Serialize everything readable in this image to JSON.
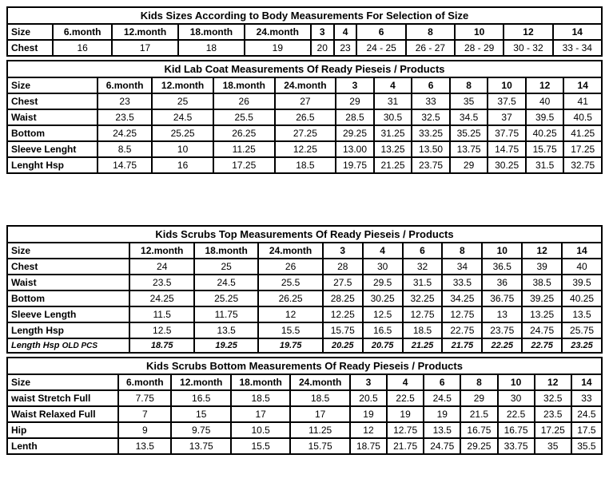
{
  "table1": {
    "title": "Kids Sizes According to Body Measurements For Selection of Size",
    "columns": [
      "Size",
      "6.month",
      "12.month",
      "18.month",
      "24.month",
      "3",
      "4",
      "6",
      "8",
      "10",
      "12",
      "14"
    ],
    "rows": [
      {
        "label": "Chest",
        "values": [
          "16",
          "17",
          "18",
          "19",
          "20",
          "23",
          "24 - 25",
          "26 - 27",
          "28 - 29",
          "30 - 32",
          "33 - 34"
        ]
      }
    ]
  },
  "table2": {
    "title": "Kid Lab Coat  Measurements Of Ready Pieseis / Products",
    "columns": [
      "Size",
      "6.month",
      "12.month",
      "18.month",
      "24.month",
      "3",
      "4",
      "6",
      "8",
      "10",
      "12",
      "14"
    ],
    "rows": [
      {
        "label": "Chest",
        "values": [
          "23",
          "25",
          "26",
          "27",
          "29",
          "31",
          "33",
          "35",
          "37.5",
          "40",
          "41"
        ]
      },
      {
        "label": "Waist",
        "values": [
          "23.5",
          "24.5",
          "25.5",
          "26.5",
          "28.5",
          "30.5",
          "32.5",
          "34.5",
          "37",
          "39.5",
          "40.5"
        ]
      },
      {
        "label": "Bottom",
        "values": [
          "24.25",
          "25.25",
          "26.25",
          "27.25",
          "29.25",
          "31.25",
          "33.25",
          "35.25",
          "37.75",
          "40.25",
          "41.25"
        ]
      },
      {
        "label": "Sleeve Lenght",
        "values": [
          "8.5",
          "10",
          "11.25",
          "12.25",
          "13.00",
          "13.25",
          "13.50",
          "13.75",
          "14.75",
          "15.75",
          "17.25"
        ]
      },
      {
        "label": "Lenght Hsp",
        "values": [
          "14.75",
          "16",
          "17.25",
          "18.5",
          "19.75",
          "21.25",
          "23.75",
          "29",
          "30.25",
          "31.5",
          "32.75"
        ]
      }
    ]
  },
  "table3": {
    "title": "Kids Scrubs Top  Measurements Of Ready Pieseis / Products",
    "columns": [
      "Size",
      "12.month",
      "18.month",
      "24.month",
      "3",
      "4",
      "6",
      "8",
      "10",
      "12",
      "14"
    ],
    "rows": [
      {
        "label": "Chest",
        "values": [
          "24",
          "25",
          "26",
          "28",
          "30",
          "32",
          "34",
          "36.5",
          "39",
          "40"
        ]
      },
      {
        "label": "Waist",
        "values": [
          "23.5",
          "24.5",
          "25.5",
          "27.5",
          "29.5",
          "31.5",
          "33.5",
          "36",
          "38.5",
          "39.5"
        ]
      },
      {
        "label": "Bottom",
        "values": [
          "24.25",
          "25.25",
          "26.25",
          "28.25",
          "30.25",
          "32.25",
          "34.25",
          "36.75",
          "39.25",
          "40.25"
        ]
      },
      {
        "label": "Sleeve Length",
        "values": [
          "11.5",
          "11.75",
          "12",
          "12.25",
          "12.5",
          "12.75",
          "12.75",
          "13",
          "13.25",
          "13.5"
        ]
      },
      {
        "label": "Length Hsp",
        "values": [
          "12.5",
          "13.5",
          "15.5",
          "15.75",
          "16.5",
          "18.5",
          "22.75",
          "23.75",
          "24.75",
          "25.75"
        ]
      }
    ],
    "oldpcs": {
      "label": "Length Hsp",
      "sublabel": "OLD PCS",
      "values": [
        "18.75",
        "19.25",
        "19.75",
        "20.25",
        "20.75",
        "21.25",
        "21.75",
        "22.25",
        "22.75",
        "23.25"
      ]
    }
  },
  "table4": {
    "title": "Kids Scrubs Bottom  Measurements Of Ready Pieseis / Products",
    "columns": [
      "Size",
      "6.month",
      "12.month",
      "18.month",
      "24.month",
      "3",
      "4",
      "6",
      "8",
      "10",
      "12",
      "14"
    ],
    "rows": [
      {
        "label": "waist Stretch Full",
        "values": [
          "7.75",
          "16.5",
          "18.5",
          "18.5",
          "20.5",
          "22.5",
          "24.5",
          "29",
          "30",
          "32.5",
          "33"
        ]
      },
      {
        "label": "Waist Relaxed Full",
        "values": [
          "7",
          "15",
          "17",
          "17",
          "19",
          "19",
          "19",
          "21.5",
          "22.5",
          "23.5",
          "24.5"
        ]
      },
      {
        "label": "Hip",
        "values": [
          "9",
          "9.75",
          "10.5",
          "11.25",
          "12",
          "12.75",
          "13.5",
          "16.75",
          "16.75",
          "17.25",
          "17.5"
        ]
      },
      {
        "label": "Lenth",
        "values": [
          "13.5",
          "13.75",
          "15.5",
          "15.75",
          "18.75",
          "21.75",
          "24.75",
          "29.25",
          "33.75",
          "35",
          "35.5"
        ]
      }
    ]
  }
}
